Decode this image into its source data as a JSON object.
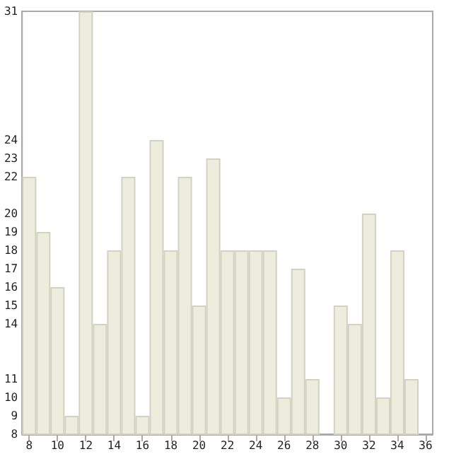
{
  "chart_data": {
    "type": "bar",
    "x": [
      8,
      9,
      10,
      11,
      12,
      13,
      14,
      15,
      16,
      17,
      18,
      19,
      20,
      21,
      22,
      23,
      24,
      25,
      26,
      27,
      28,
      29,
      30,
      31,
      32,
      33,
      34,
      35,
      36
    ],
    "values": [
      22,
      19,
      16,
      9,
      31,
      14,
      18,
      22,
      9,
      24,
      18,
      22,
      15,
      23,
      18,
      18,
      18,
      18,
      10,
      17,
      11,
      8,
      15,
      14,
      20,
      10,
      18,
      11,
      8
    ],
    "color": "#ededde",
    "xlim": [
      7.5,
      36.5
    ],
    "xticks": [
      8,
      10,
      12,
      14,
      16,
      18,
      20,
      22,
      24,
      26,
      28,
      30,
      32,
      34,
      36
    ],
    "ylim": [
      8,
      31
    ],
    "yticks": [
      8,
      9,
      10,
      11,
      14,
      15,
      16,
      17,
      18,
      19,
      20,
      22,
      23,
      24,
      31
    ],
    "grid": false
  }
}
